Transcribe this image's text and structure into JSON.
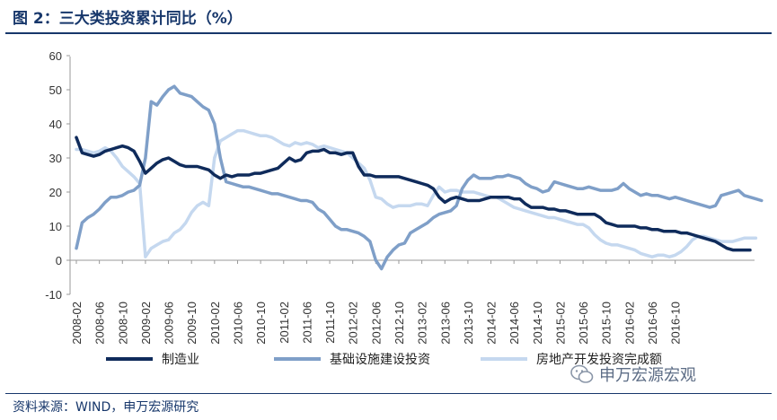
{
  "title": "图 2：三大类投资累计同比（%）",
  "source": "资料来源：WIND，申万宏源研究",
  "watermark": "申万宏源宏观",
  "chart_data": {
    "type": "line",
    "ylim": [
      -10,
      60
    ],
    "yticks": [
      60,
      50,
      40,
      30,
      20,
      10,
      0,
      -10
    ],
    "xticks": [
      "2008-02",
      "2008-06",
      "2008-10",
      "2009-02",
      "2009-06",
      "2009-10",
      "2010-02",
      "2010-06",
      "2010-10",
      "2011-02",
      "2011-06",
      "2011-10",
      "2012-02",
      "2012-06",
      "2012-10",
      "2013-02",
      "2013-06",
      "2013-10",
      "2014-02",
      "2014-06",
      "2014-10",
      "2015-02",
      "2015-06",
      "2015-10",
      "2016-02",
      "2016-06",
      "2016-10"
    ],
    "grid": false,
    "legend": "bottom",
    "series": [
      {
        "name": "制造业",
        "color": "#0f2b5b",
        "values": [
          36,
          31.5,
          31,
          30.5,
          31,
          32,
          32.5,
          33,
          33.5,
          33,
          32,
          29,
          25.5,
          27,
          28.5,
          29.5,
          30,
          29,
          28,
          27.5,
          27.5,
          27.5,
          27,
          26.5,
          25,
          24,
          25,
          24.5,
          25,
          25,
          25,
          25.5,
          25.5,
          26,
          26.5,
          27,
          28.5,
          30,
          29,
          29.5,
          31.5,
          32,
          32,
          32.5,
          31.5,
          31.5,
          31,
          31.5,
          31.5,
          27.5,
          25,
          25,
          24.5,
          24.5,
          24.5,
          24.5,
          24.5,
          24,
          23.5,
          23,
          22.5,
          22,
          21,
          18.5,
          17,
          18,
          18.5,
          18,
          17.5,
          17.5,
          17.5,
          18,
          18.5,
          18.5,
          18.5,
          18.5,
          18,
          18,
          16.5,
          15.5,
          15.5,
          15.5,
          15,
          15,
          14.5,
          14.5,
          14,
          13.5,
          13.5,
          13.5,
          13.5,
          12.5,
          11,
          10.5,
          10,
          10,
          10,
          10,
          9.5,
          9.5,
          9,
          9,
          8.5,
          8.5,
          8.5,
          8,
          8,
          7.5,
          7,
          6.5,
          6,
          5.5,
          4.5,
          3.5,
          3,
          3,
          3,
          3
        ]
      },
      {
        "name": "基础设施建设投资",
        "color": "#7f9fc8",
        "values": [
          3.5,
          11,
          12.5,
          13.5,
          15,
          17,
          18.5,
          18.5,
          19,
          20,
          20.5,
          22,
          30,
          46.5,
          45.5,
          48,
          50,
          51,
          49,
          48.5,
          48,
          46.5,
          45,
          44,
          40,
          30,
          23,
          22.5,
          22,
          21.5,
          21.5,
          21,
          20.5,
          20,
          19.5,
          19.5,
          19,
          18.5,
          18,
          17.5,
          17.5,
          17,
          15,
          14,
          12,
          10,
          9,
          9,
          8.5,
          8,
          7,
          5.5,
          0,
          -2.5,
          1,
          3,
          4.5,
          5,
          8,
          9,
          10,
          11,
          12.5,
          13.5,
          14,
          14.5,
          16,
          21,
          23.5,
          25,
          24,
          24,
          24,
          24.5,
          24.5,
          25,
          24.5,
          24,
          22.5,
          21.5,
          21,
          20,
          20.5,
          23,
          22.5,
          22,
          21.5,
          21,
          21,
          21.5,
          21,
          20.5,
          20.5,
          20.5,
          21,
          22.5,
          21,
          20,
          19,
          19.5,
          19,
          19,
          18.5,
          18,
          18.5,
          18,
          17.5,
          17,
          16.5,
          16,
          15.5,
          16,
          19,
          19.5,
          20,
          20.5,
          19,
          18.5,
          18,
          17.5
        ]
      },
      {
        "name": "房地产开发投资完成额",
        "color": "#c5d8ef",
        "values": [
          32.5,
          32.5,
          32,
          31.5,
          32,
          33,
          32,
          30,
          27.5,
          26,
          24.5,
          22.5,
          1,
          3.5,
          4.5,
          5.5,
          6,
          8,
          9,
          11,
          14,
          16,
          17,
          16,
          30,
          35,
          36,
          37,
          38,
          38,
          37.5,
          37,
          36.5,
          36.5,
          36,
          35,
          34,
          33.5,
          34.5,
          34,
          34.5,
          34,
          33,
          33.5,
          33,
          32.5,
          32,
          31.5,
          30,
          28.5,
          27,
          23.5,
          18.5,
          18,
          16.5,
          15.5,
          16,
          16,
          16,
          16.5,
          16.5,
          16,
          19,
          21.5,
          20,
          20.5,
          20.5,
          20,
          20,
          20,
          19.5,
          19,
          18.5,
          18.5,
          17.5,
          16.5,
          15.5,
          15,
          14.5,
          14,
          13.5,
          13,
          12.5,
          12.5,
          12,
          11.5,
          11,
          10.5,
          10.5,
          9.5,
          7.5,
          6,
          5,
          4.5,
          4.5,
          4,
          3.5,
          3,
          2,
          1.5,
          1,
          1.5,
          1.5,
          1,
          1.5,
          2.5,
          4,
          6,
          7,
          7,
          6.5,
          6,
          5.5,
          5.5,
          5.5,
          6,
          6.5,
          6.5,
          6.5
        ]
      }
    ]
  }
}
